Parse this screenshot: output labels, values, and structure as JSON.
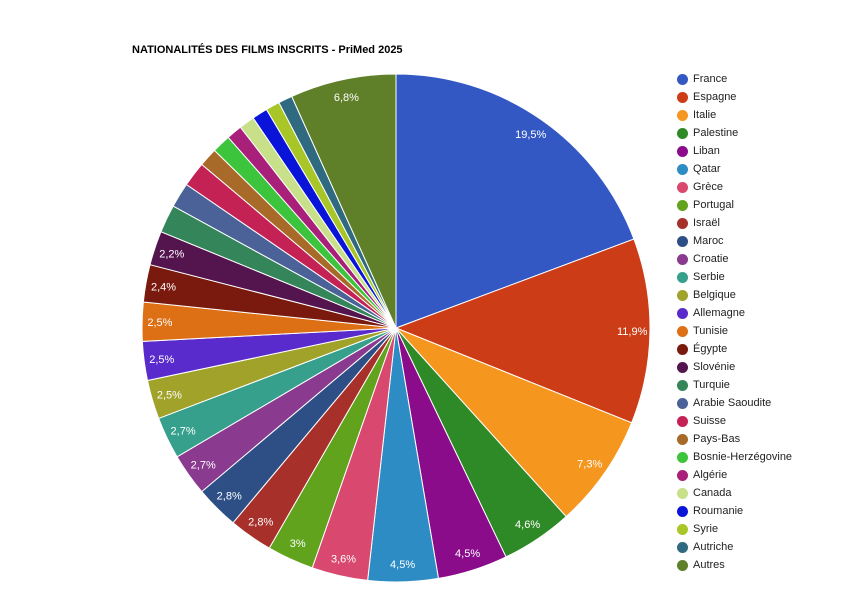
{
  "chart_data": {
    "type": "pie",
    "title": "NATIONALITÉS DES FILMS INSCRITS - PriMed 2025",
    "legend_position": "right",
    "slices": [
      {
        "name": "France",
        "value": 19.5,
        "label": "19,5%",
        "color": "#3358c4"
      },
      {
        "name": "Espagne",
        "value": 11.9,
        "label": "11,9%",
        "color": "#cc3d17"
      },
      {
        "name": "Italie",
        "value": 7.3,
        "label": "7,3%",
        "color": "#f5961f"
      },
      {
        "name": "Palestine",
        "value": 4.6,
        "label": "4,6%",
        "color": "#2e8a26"
      },
      {
        "name": "Liban",
        "value": 4.5,
        "label": "4,5%",
        "color": "#8b0c8b"
      },
      {
        "name": "Qatar",
        "value": 4.5,
        "label": "4,5%",
        "color": "#2d8cc4"
      },
      {
        "name": "Grèce",
        "value": 3.6,
        "label": "3,6%",
        "color": "#d9486e"
      },
      {
        "name": "Portugal",
        "value": 3.0,
        "label": "3%",
        "color": "#62a31e"
      },
      {
        "name": "Israël",
        "value": 2.8,
        "label": "2,8%",
        "color": "#a8302a"
      },
      {
        "name": "Maroc",
        "value": 2.8,
        "label": "2,8%",
        "color": "#2e4f86"
      },
      {
        "name": "Croatie",
        "value": 2.7,
        "label": "2,7%",
        "color": "#8a3a8f"
      },
      {
        "name": "Serbie",
        "value": 2.7,
        "label": "2,7%",
        "color": "#36a08c"
      },
      {
        "name": "Belgique",
        "value": 2.5,
        "label": "2,5%",
        "color": "#a1a22a"
      },
      {
        "name": "Allemagne",
        "value": 2.5,
        "label": "2,5%",
        "color": "#5a2bcc"
      },
      {
        "name": "Tunisie",
        "value": 2.5,
        "label": "2,5%",
        "color": "#dd6f14"
      },
      {
        "name": "Égypte",
        "value": 2.4,
        "label": "2,4%",
        "color": "#7a1a0e"
      },
      {
        "name": "Slovénie",
        "value": 2.2,
        "label": "2,2%",
        "color": "#54154f"
      },
      {
        "name": "Turquie",
        "value": 1.8,
        "label": "",
        "color": "#35855a"
      },
      {
        "name": "Arabie Saoudite",
        "value": 1.6,
        "label": "",
        "color": "#4a6298"
      },
      {
        "name": "Suisse",
        "value": 1.6,
        "label": "",
        "color": "#c42254"
      },
      {
        "name": "Pays-Bas",
        "value": 1.2,
        "label": "",
        "color": "#a86a28"
      },
      {
        "name": "Bosnie-Herzégovine",
        "value": 1.2,
        "label": "",
        "color": "#3cc53c"
      },
      {
        "name": "Algérie",
        "value": 1.0,
        "label": "",
        "color": "#a8207a"
      },
      {
        "name": "Canada",
        "value": 1.0,
        "label": "",
        "color": "#c8e08a"
      },
      {
        "name": "Roumanie",
        "value": 1.0,
        "label": "",
        "color": "#0a14d8"
      },
      {
        "name": "Syrie",
        "value": 0.9,
        "label": "",
        "color": "#a8c628"
      },
      {
        "name": "Autriche",
        "value": 0.9,
        "label": "",
        "color": "#2f6a80"
      },
      {
        "name": "Autres",
        "value": 6.8,
        "label": "6,8%",
        "color": "#5f7f28"
      }
    ]
  }
}
